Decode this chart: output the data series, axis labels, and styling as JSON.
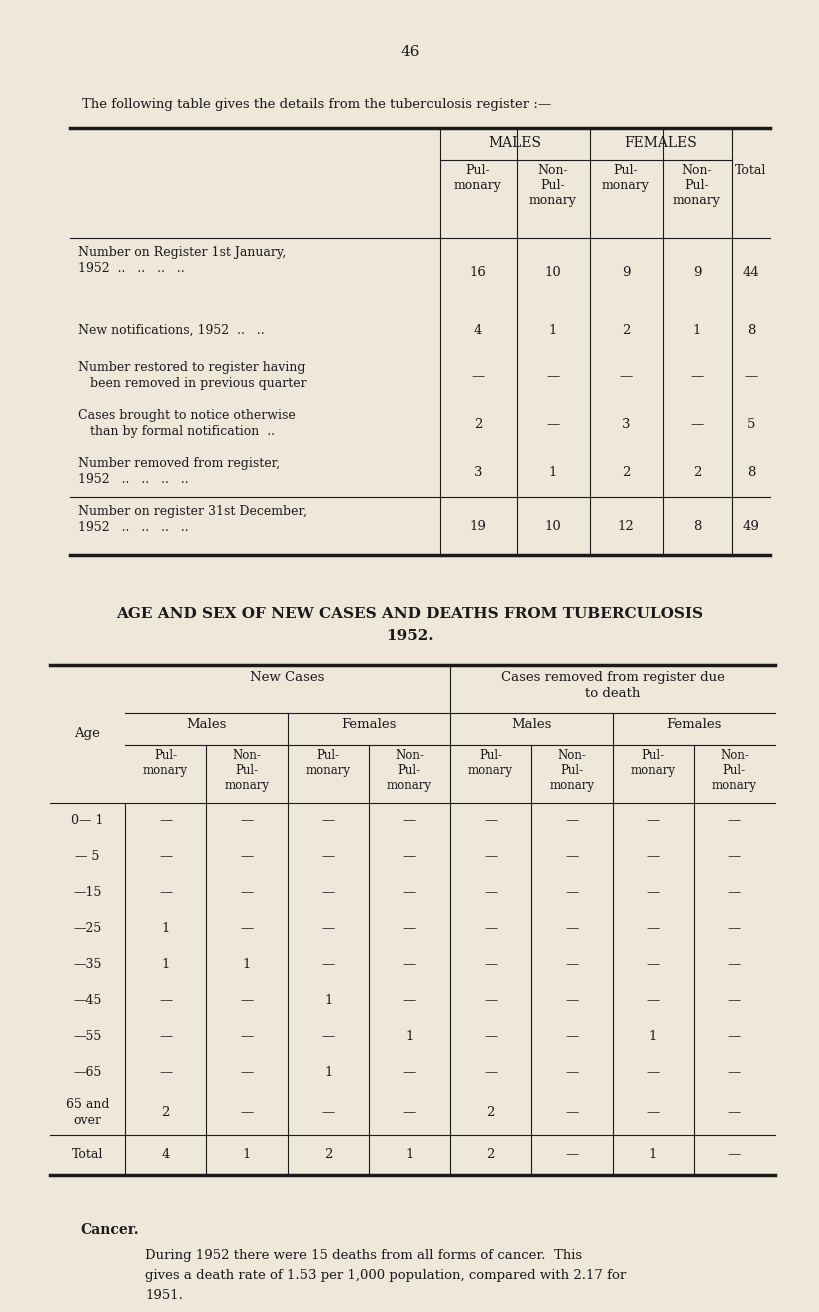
{
  "bg_color": "#ede8da",
  "text_color": "#1a1a1a",
  "page_number": "46",
  "intro_text": "The following table gives the details from the tuberculosis register :—",
  "table1_col_headers": [
    "Pul-\nmonary",
    "Non-\nPul-\nmonary",
    "Pul-\nmonary",
    "Non-\nPul-\nmonary",
    "Total"
  ],
  "table1_rows": [
    {
      "label_lines": [
        "Number on Register 1st January,",
        "1952  ..   ..   ..   .."
      ],
      "values": [
        "16",
        "10",
        "9",
        "9",
        "44"
      ]
    },
    {
      "label_lines": [
        "New notifications, 1952  ..   .."
      ],
      "values": [
        "4",
        "1",
        "2",
        "1",
        "8"
      ]
    },
    {
      "label_lines": [
        "Number restored to register having",
        "   been removed in previous quarter"
      ],
      "values": [
        "—",
        "—",
        "—",
        "—",
        "—"
      ]
    },
    {
      "label_lines": [
        "Cases brought to notice otherwise",
        "   than by formal notification  .."
      ],
      "values": [
        "2",
        "—",
        "3",
        "—",
        "5"
      ]
    },
    {
      "label_lines": [
        "Number removed from register,",
        "1952   ..   ..   ..   .."
      ],
      "values": [
        "3",
        "1",
        "2",
        "2",
        "8"
      ]
    },
    {
      "label_lines": [
        "Number on register 31st December,",
        "1952   ..   ..   ..   .."
      ],
      "values": [
        "19",
        "10",
        "12",
        "8",
        "49"
      ],
      "separator_above": true
    }
  ],
  "section2_line1": "AGE AND SEX OF NEW CASES AND DEATHS FROM TUBERCULOSIS",
  "section2_line2": "1952.",
  "table2_new_cases": "New Cases",
  "table2_removed": "Cases removed from register due\nto death",
  "table2_sex_headers": [
    "Males",
    "Females",
    "Males",
    "Females"
  ],
  "table2_col_headers": [
    "Pul-\nmonary",
    "Non-\nPul-\nmonary",
    "Pul-\nmonary",
    "Non-\nPul-\nmonary",
    "Pul-\nmonary",
    "Non-\nPul-\nmonary",
    "Pul-\nmonary",
    "Non-\nPul-\nmonary"
  ],
  "table2_age_labels": [
    "0— 1",
    "— 5",
    "—15",
    "—25",
    "—35",
    "—45",
    "—55",
    "—65",
    "65 and\nover",
    "Total"
  ],
  "table2_data": [
    [
      "—",
      "—",
      "—",
      "—",
      "—",
      "—",
      "—",
      "—"
    ],
    [
      "—",
      "—",
      "—",
      "—",
      "—",
      "—",
      "—",
      "—"
    ],
    [
      "—",
      "—",
      "—",
      "—",
      "—",
      "—",
      "—",
      "—"
    ],
    [
      "1",
      "—",
      "—",
      "—",
      "—",
      "—",
      "—",
      "—"
    ],
    [
      "1",
      "1",
      "—",
      "—",
      "—",
      "—",
      "—",
      "—"
    ],
    [
      "—",
      "—",
      "1",
      "—",
      "—",
      "—",
      "—",
      "—"
    ],
    [
      "—",
      "—",
      "—",
      "1",
      "—",
      "—",
      "1",
      "—"
    ],
    [
      "—",
      "—",
      "1",
      "—",
      "—",
      "—",
      "—",
      "—"
    ],
    [
      "2",
      "—",
      "—",
      "—",
      "2",
      "—",
      "—",
      "—"
    ],
    [
      "4",
      "1",
      "2",
      "1",
      "2",
      "—",
      "1",
      "—"
    ]
  ],
  "cancer_title": "Cancer.",
  "cancer_body": "During 1952 there were 15 deaths from all forms of cancer.  This\ngives a death rate of 1.53 per 1,000 population, compared with 2.17 for\n1951."
}
